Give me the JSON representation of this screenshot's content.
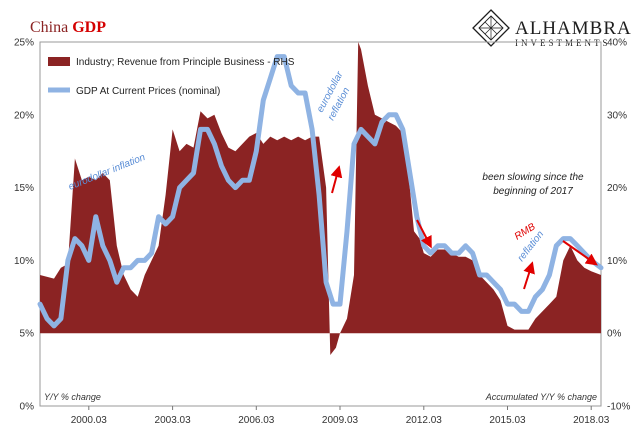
{
  "header": {
    "title_prefix": "China ",
    "title_emphasis": "GDP",
    "brand_name": "ALHAMBRA",
    "brand_sub": "INVESTMENTS"
  },
  "colors": {
    "bar_fill": "#8b2323",
    "line": "#8fb3e3",
    "title_accent": "#d40000",
    "annotation_blue": "#5b8ed6",
    "annotation_red": "#e00000"
  },
  "chart_data": {
    "type": "area",
    "x_tick_labels": [
      "2000.03",
      "2003.03",
      "2006.03",
      "2009.03",
      "2012.03",
      "2015.03",
      "2018.03"
    ],
    "x_tick_values": [
      2000.25,
      2003.25,
      2006.25,
      2009.25,
      2012.25,
      2015.25,
      2018.25
    ],
    "xlim": [
      1998.5,
      2018.6
    ],
    "left_axis": {
      "label": "Y/Y % change",
      "ylim": [
        0,
        25
      ],
      "ticks": [
        "0%",
        "5%",
        "10%",
        "15%",
        "20%",
        "25%"
      ],
      "tick_values": [
        0,
        5,
        10,
        15,
        20,
        25
      ]
    },
    "right_axis": {
      "label": "Accumulated Y/Y % change",
      "ylim": [
        -10,
        40
      ],
      "ticks": [
        "-10%",
        "0%",
        "10%",
        "20%",
        "30%",
        "40%"
      ],
      "tick_values": [
        -10,
        0,
        10,
        20,
        30,
        40
      ]
    },
    "legend_placement": "top-left",
    "series": [
      {
        "name": "Industry; Revenue from Principle Business - RHS",
        "axis": "right",
        "style": "area",
        "points": [
          [
            1998.5,
            8
          ],
          [
            1999.0,
            7.5
          ],
          [
            1999.25,
            9
          ],
          [
            1999.5,
            9.5
          ],
          [
            1999.75,
            24
          ],
          [
            2000.0,
            21
          ],
          [
            2000.25,
            21.5
          ],
          [
            2000.5,
            21
          ],
          [
            2000.75,
            22
          ],
          [
            2001.0,
            21
          ],
          [
            2001.25,
            12
          ],
          [
            2001.5,
            8
          ],
          [
            2001.75,
            6
          ],
          [
            2002.0,
            5
          ],
          [
            2002.25,
            8
          ],
          [
            2002.5,
            10
          ],
          [
            2002.75,
            12
          ],
          [
            2003.0,
            19
          ],
          [
            2003.25,
            28
          ],
          [
            2003.5,
            25
          ],
          [
            2003.75,
            26
          ],
          [
            2004.0,
            25.5
          ],
          [
            2004.25,
            30.5
          ],
          [
            2004.5,
            29.5
          ],
          [
            2004.75,
            30
          ],
          [
            2005.0,
            27.5
          ],
          [
            2005.25,
            25.5
          ],
          [
            2005.5,
            25
          ],
          [
            2005.75,
            26
          ],
          [
            2006.0,
            27
          ],
          [
            2006.25,
            27.5
          ],
          [
            2006.5,
            26
          ],
          [
            2006.75,
            27
          ],
          [
            2007.0,
            26.5
          ],
          [
            2007.25,
            27
          ],
          [
            2007.5,
            26.5
          ],
          [
            2007.75,
            27
          ],
          [
            2008.0,
            26.5
          ],
          [
            2008.25,
            27
          ],
          [
            2008.5,
            27
          ],
          [
            2008.75,
            20
          ],
          [
            2008.9,
            -3
          ],
          [
            2009.1,
            -2
          ],
          [
            2009.25,
            0
          ],
          [
            2009.5,
            2
          ],
          [
            2009.75,
            8
          ],
          [
            2009.9,
            40
          ],
          [
            2010.0,
            39
          ],
          [
            2010.25,
            34
          ],
          [
            2010.5,
            30
          ],
          [
            2010.75,
            29.5
          ],
          [
            2011.0,
            29
          ],
          [
            2011.25,
            28.5
          ],
          [
            2011.5,
            27.5
          ],
          [
            2011.75,
            20
          ],
          [
            2011.9,
            14
          ],
          [
            2012.1,
            13
          ],
          [
            2012.25,
            11
          ],
          [
            2012.5,
            10.5
          ],
          [
            2012.75,
            11.5
          ],
          [
            2013.0,
            11.5
          ],
          [
            2013.25,
            11
          ],
          [
            2013.5,
            10.5
          ],
          [
            2013.75,
            10.5
          ],
          [
            2014.0,
            10
          ],
          [
            2014.25,
            8
          ],
          [
            2014.5,
            7
          ],
          [
            2014.75,
            6
          ],
          [
            2015.0,
            4.5
          ],
          [
            2015.25,
            1
          ],
          [
            2015.5,
            0.5
          ],
          [
            2015.75,
            0.5
          ],
          [
            2016.0,
            0.5
          ],
          [
            2016.25,
            2
          ],
          [
            2016.5,
            3
          ],
          [
            2016.75,
            4
          ],
          [
            2017.0,
            5
          ],
          [
            2017.25,
            10
          ],
          [
            2017.5,
            12
          ],
          [
            2017.75,
            10
          ],
          [
            2018.0,
            9
          ],
          [
            2018.25,
            8.5
          ],
          [
            2018.6,
            8
          ]
        ]
      },
      {
        "name": "GDP At Current Prices (nominal)",
        "axis": "left",
        "style": "line",
        "points": [
          [
            1998.5,
            7
          ],
          [
            1998.75,
            6
          ],
          [
            1999.0,
            5.5
          ],
          [
            1999.25,
            6
          ],
          [
            1999.5,
            10
          ],
          [
            1999.75,
            11.5
          ],
          [
            2000.0,
            11
          ],
          [
            2000.25,
            10
          ],
          [
            2000.5,
            13
          ],
          [
            2000.75,
            11
          ],
          [
            2001.0,
            10
          ],
          [
            2001.25,
            8.5
          ],
          [
            2001.5,
            9.5
          ],
          [
            2001.75,
            9.5
          ],
          [
            2002.0,
            10
          ],
          [
            2002.25,
            10
          ],
          [
            2002.5,
            10.5
          ],
          [
            2002.75,
            13
          ],
          [
            2003.0,
            12.5
          ],
          [
            2003.25,
            13
          ],
          [
            2003.5,
            15
          ],
          [
            2003.75,
            15.5
          ],
          [
            2004.0,
            16
          ],
          [
            2004.25,
            19
          ],
          [
            2004.5,
            19
          ],
          [
            2004.75,
            18
          ],
          [
            2005.0,
            16.5
          ],
          [
            2005.25,
            15.5
          ],
          [
            2005.5,
            15
          ],
          [
            2005.75,
            15.5
          ],
          [
            2006.0,
            15.5
          ],
          [
            2006.25,
            17.5
          ],
          [
            2006.5,
            21
          ],
          [
            2006.75,
            22.5
          ],
          [
            2007.0,
            24
          ],
          [
            2007.25,
            24
          ],
          [
            2007.5,
            22
          ],
          [
            2007.75,
            21.5
          ],
          [
            2008.0,
            21.5
          ],
          [
            2008.25,
            19
          ],
          [
            2008.5,
            14.5
          ],
          [
            2008.75,
            8.5
          ],
          [
            2009.0,
            7
          ],
          [
            2009.25,
            7
          ],
          [
            2009.5,
            12
          ],
          [
            2009.75,
            18
          ],
          [
            2010.0,
            19
          ],
          [
            2010.25,
            18.5
          ],
          [
            2010.5,
            18
          ],
          [
            2010.75,
            19.5
          ],
          [
            2011.0,
            20
          ],
          [
            2011.25,
            20
          ],
          [
            2011.5,
            19
          ],
          [
            2011.75,
            16
          ],
          [
            2012.0,
            13
          ],
          [
            2012.25,
            11
          ],
          [
            2012.5,
            10.5
          ],
          [
            2012.75,
            11
          ],
          [
            2013.0,
            11
          ],
          [
            2013.25,
            10.5
          ],
          [
            2013.5,
            10.5
          ],
          [
            2013.75,
            11
          ],
          [
            2014.0,
            10.5
          ],
          [
            2014.25,
            9
          ],
          [
            2014.5,
            9
          ],
          [
            2014.75,
            8.5
          ],
          [
            2015.0,
            8
          ],
          [
            2015.25,
            7
          ],
          [
            2015.5,
            7
          ],
          [
            2015.75,
            6.5
          ],
          [
            2016.0,
            6.5
          ],
          [
            2016.25,
            7.5
          ],
          [
            2016.5,
            8
          ],
          [
            2016.75,
            9
          ],
          [
            2017.0,
            11
          ],
          [
            2017.25,
            11.5
          ],
          [
            2017.5,
            11.5
          ],
          [
            2017.75,
            11
          ],
          [
            2018.0,
            10.5
          ],
          [
            2018.25,
            10
          ],
          [
            2018.6,
            9.5
          ]
        ]
      }
    ],
    "annotations": [
      {
        "text": "eurodollar  inflation",
        "color": "blue"
      },
      {
        "text": "eurodollar",
        "color": "blue"
      },
      {
        "text": "reflation",
        "color": "blue"
      },
      {
        "text": "been slowing since the",
        "color": "dark"
      },
      {
        "text": "beginning of 2017",
        "color": "dark"
      },
      {
        "text": "RMB",
        "color": "red"
      },
      {
        "text": "reflation",
        "color": "blue"
      }
    ]
  }
}
